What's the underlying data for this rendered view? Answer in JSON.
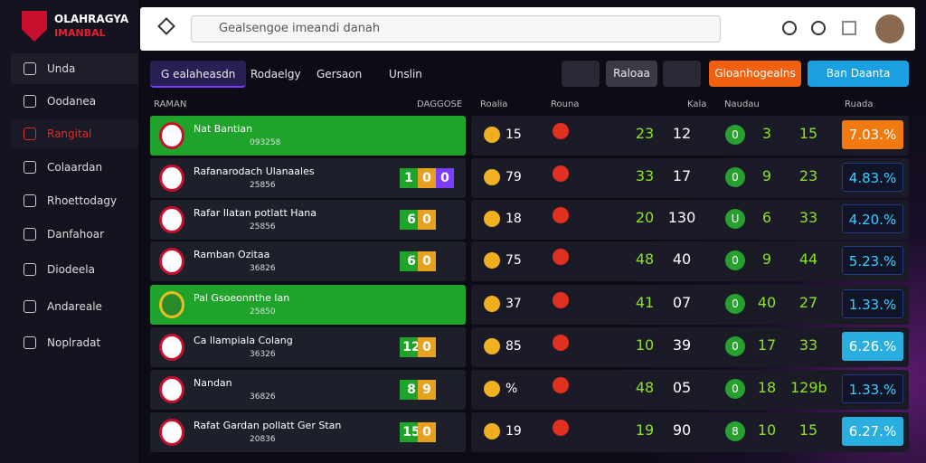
{
  "brand": {
    "title": "OLAHRAGYA",
    "subtitle": "IMANBAL"
  },
  "nav": [
    "Unda",
    "Oodanea",
    "Rangital",
    "Colaardan",
    "Rhoettodagy",
    "Danfahoar",
    "Diodeela",
    "Andareale",
    "Noplradat"
  ],
  "search": "Gealsengoe imeandi danah",
  "tabs": [
    "G ealaheasdn",
    "Rodaelgy",
    "Gersaon",
    "Unslin"
  ],
  "buttons": [
    "Raloaa",
    "Gloanhogealns",
    "Ban Daanta"
  ],
  "headers": [
    "RAMAN",
    "DAGGOSE",
    "Roalia",
    "Rouna",
    "Kala",
    "Naudau",
    "Ruada"
  ],
  "rows": [
    {
      "name": "Nat Bantian",
      "sub": "093258",
      "scores": [],
      "code": "15",
      "a": "23",
      "b": "12",
      "c": "0",
      "d": "3",
      "e": "15",
      "odds": "7.03.%"
    },
    {
      "name": "Rafanarodach Ulanaales",
      "sub": "25856",
      "scores": [
        "1",
        "0",
        "0"
      ],
      "code": "79",
      "a": "33",
      "b": "17",
      "c": "0",
      "d": "9",
      "e": "23",
      "odds": "4.83.%"
    },
    {
      "name": "Rafar Ilatan potlatt Hana",
      "sub": "25856",
      "scores": [
        "6",
        "0"
      ],
      "code": "18",
      "a": "20",
      "b": "130",
      "c": "U",
      "d": "6",
      "e": "33",
      "odds": "4.20.%"
    },
    {
      "name": "Ramban Ozitaa",
      "sub": "36826",
      "scores": [
        "6",
        "0"
      ],
      "code": "75",
      "a": "48",
      "b": "40",
      "c": "0",
      "d": "9",
      "e": "44",
      "odds": "5.23.%"
    },
    {
      "name": "Pal Gsoeonnthe lan",
      "sub": "25850",
      "scores": [],
      "code": "37",
      "a": "41",
      "b": "07",
      "c": "0",
      "d": "40",
      "e": "27",
      "odds": "1.33.%"
    },
    {
      "name": "Ca llampiala Colang",
      "sub": "36326",
      "scores": [
        "12",
        "0"
      ],
      "code": "85",
      "a": "10",
      "b": "39",
      "c": "0",
      "d": "17",
      "e": "33",
      "odds": "6.26.%"
    },
    {
      "name": "Nandan",
      "sub": "36826",
      "scores": [
        "8",
        "9"
      ],
      "code": "%",
      "a": "48",
      "b": "05",
      "c": "0",
      "d": "18",
      "e": "129b",
      "odds": "1.33.%"
    },
    {
      "name": "Rafat Gardan pollatt Ger Stan",
      "sub": "20836",
      "scores": [
        "15",
        "0"
      ],
      "code": "19",
      "a": "19",
      "b": "90",
      "c": "8",
      "d": "10",
      "e": "15",
      "odds": "6.27.%"
    }
  ]
}
